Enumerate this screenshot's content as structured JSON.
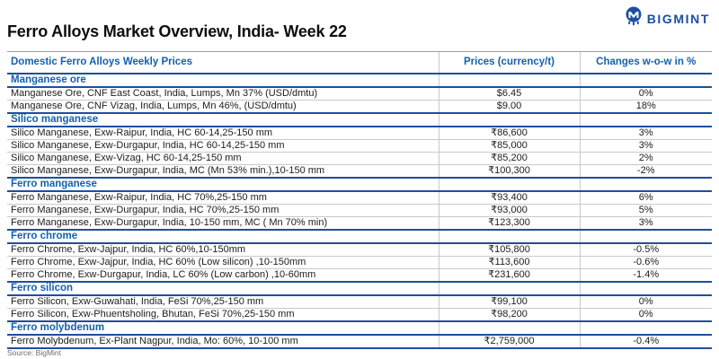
{
  "logo": {
    "brand": "BIGMINT"
  },
  "title": "Ferro Alloys Market Overview, India- Week 22",
  "footer": {
    "source": "Source: BigMint"
  },
  "colors": {
    "accent_blue": "#1261b0",
    "border_blue": "#1d4f9e",
    "positive_green": "#27a163",
    "negative_red": "#ea5455",
    "logo_blue": "#1b4fa3"
  },
  "chart_data": {
    "type": "table",
    "title": "Ferro Alloys Market Overview, India- Week 22",
    "columns": [
      "Domestic Ferro Alloys Weekly Prices",
      "Prices (currency/t)",
      "Changes w-o-w in %"
    ],
    "sections": [
      {
        "name": "Manganese ore",
        "rows": [
          {
            "desc": "Manganese Ore, CNF East Coast, India, Lumps, Mn 37% (USD/dmtu)",
            "price": "$6.45",
            "change": "0%",
            "trend": "neutral"
          },
          {
            "desc": "Manganese Ore, CNF Vizag, India, Lumps, Mn 46%, (USD/dmtu)",
            "price": "$9.00",
            "change": "18%",
            "trend": "up"
          }
        ]
      },
      {
        "name": "Silico manganese",
        "rows": [
          {
            "desc": "Silico Manganese, Exw-Raipur, India, HC 60-14,25-150 mm",
            "price": "₹86,600",
            "change": "3%",
            "trend": "up"
          },
          {
            "desc": "Silico Manganese, Exw-Durgapur, India, HC 60-14,25-150 mm",
            "price": "₹85,000",
            "change": "3%",
            "trend": "up"
          },
          {
            "desc": "Silico Manganese, Exw-Vizag, HC 60-14,25-150 mm",
            "price": "₹85,200",
            "change": "2%",
            "trend": "up"
          },
          {
            "desc": "Silico Manganese, Exw-Durgapur, India, MC (Mn 53% min.),10-150 mm",
            "price": "₹100,300",
            "change": "-2%",
            "trend": "down"
          }
        ]
      },
      {
        "name": "Ferro manganese",
        "rows": [
          {
            "desc": "Ferro Manganese, Exw-Raipur, India, HC 70%,25-150 mm",
            "price": "₹93,400",
            "change": "6%",
            "trend": "up"
          },
          {
            "desc": "Ferro Manganese, Exw-Durgapur, India, HC 70%,25-150 mm",
            "price": "₹93,000",
            "change": "5%",
            "trend": "up"
          },
          {
            "desc": "Ferro Manganese, Exw-Durgapur, India, 10-150 mm, MC ( Mn 70% min)",
            "price": "₹123,300",
            "change": "3%",
            "trend": "up"
          }
        ]
      },
      {
        "name": "Ferro chrome",
        "rows": [
          {
            "desc": "Ferro Chrome, Exw-Jajpur, India, HC 60%,10-150mm",
            "price": "₹105,800",
            "change": "-0.5%",
            "trend": "down"
          },
          {
            "desc": "Ferro Chrome, Exw-Jajpur, India, HC 60% (Low silicon) ,10-150mm",
            "price": "₹113,600",
            "change": "-0.6%",
            "trend": "down"
          },
          {
            "desc": "Ferro Chrome, Exw-Durgapur, India, LC 60% (Low carbon) ,10-60mm",
            "price": "₹231,600",
            "change": "-1.4%",
            "trend": "down"
          }
        ]
      },
      {
        "name": "Ferro silicon",
        "rows": [
          {
            "desc": "Ferro Silicon, Exw-Guwahati, India, FeSi 70%,25-150 mm",
            "price": "₹99,100",
            "change": "0%",
            "trend": "down"
          },
          {
            "desc": "Ferro Silicon, Exw-Phuentsholing, Bhutan, FeSi 70%,25-150 mm",
            "price": "₹98,200",
            "change": "0%",
            "trend": "down"
          }
        ]
      },
      {
        "name": "Ferro molybdenum",
        "rows": [
          {
            "desc": "Ferro Molybdenum, Ex-Plant Nagpur, India, Mo: 60%, 10-100 mm",
            "price": "₹2,759,000",
            "change": "-0.4%",
            "trend": "down"
          }
        ]
      }
    ]
  }
}
